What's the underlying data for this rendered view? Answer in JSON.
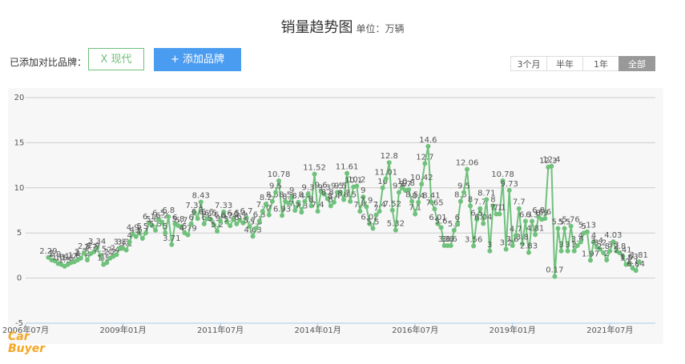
{
  "header": {
    "title": "销量趋势图",
    "unit": "单位：万辆",
    "added_label": "已添加对比品牌：",
    "brand_tag": "X 现代",
    "add_button": "+ 添加品牌",
    "ranges": [
      "3个月",
      "半年",
      "1年",
      "全部"
    ],
    "active_range": "全部",
    "logo": [
      "Car",
      "Buyer"
    ]
  },
  "chart_data": {
    "type": "line",
    "color": "#6fc17c",
    "grid": true,
    "xlim": [
      "2006-07",
      "2022-09"
    ],
    "xticks": [
      {
        "value": "2006-07",
        "label": "2006年07月"
      },
      {
        "value": "2009-01",
        "label": "2009年01月"
      },
      {
        "value": "2011-07",
        "label": "2011年07月"
      },
      {
        "value": "2014-01",
        "label": "2014年01月"
      },
      {
        "value": "2016-07",
        "label": "2016年07月"
      },
      {
        "value": "2019-01",
        "label": "2019年01月"
      },
      {
        "value": "2021-07",
        "label": "2021年07月"
      }
    ],
    "ylim": [
      -5,
      20
    ],
    "yticks": [
      -5,
      0,
      5,
      10,
      15,
      20
    ],
    "x": [
      "2007-02",
      "2007-03",
      "2007-04",
      "2007-05",
      "2007-06",
      "2007-07",
      "2007-08",
      "2007-09",
      "2007-10",
      "2007-11",
      "2007-12",
      "2008-01",
      "2008-02",
      "2008-03",
      "2008-04",
      "2008-05",
      "2008-06",
      "2008-07",
      "2008-08",
      "2008-09",
      "2008-10",
      "2008-11",
      "2008-12",
      "2009-01",
      "2009-02",
      "2009-03",
      "2009-04",
      "2009-05",
      "2009-06",
      "2009-07",
      "2009-08",
      "2009-09",
      "2009-10",
      "2009-11",
      "2009-12",
      "2010-01",
      "2010-02",
      "2010-03",
      "2010-04",
      "2010-05",
      "2010-06",
      "2010-07",
      "2010-08",
      "2010-09",
      "2010-10",
      "2010-11",
      "2010-12",
      "2011-01",
      "2011-02",
      "2011-03",
      "2011-04",
      "2011-05",
      "2011-06",
      "2011-07",
      "2011-08",
      "2011-09",
      "2011-10",
      "2011-11",
      "2011-12",
      "2012-01",
      "2012-02",
      "2012-03",
      "2012-04",
      "2012-05",
      "2012-06",
      "2012-07",
      "2012-08",
      "2012-09",
      "2012-10",
      "2012-11",
      "2012-12",
      "2013-01",
      "2013-02",
      "2013-03",
      "2013-04",
      "2013-05",
      "2013-06",
      "2013-07",
      "2013-08",
      "2013-09",
      "2013-10",
      "2013-11",
      "2013-12",
      "2014-01",
      "2014-02",
      "2014-03",
      "2014-04",
      "2014-05",
      "2014-06",
      "2014-07",
      "2014-08",
      "2014-09",
      "2014-10",
      "2014-11",
      "2014-12",
      "2015-01",
      "2015-02",
      "2015-03",
      "2015-04",
      "2015-05",
      "2015-06",
      "2015-07",
      "2015-08",
      "2015-09",
      "2015-10",
      "2015-11",
      "2015-12",
      "2016-01",
      "2016-02",
      "2016-03",
      "2016-04",
      "2016-05",
      "2016-06",
      "2016-07",
      "2016-08",
      "2016-09",
      "2016-10",
      "2016-11",
      "2016-12",
      "2017-01",
      "2017-02",
      "2017-03",
      "2017-04",
      "2017-05",
      "2017-06",
      "2017-07",
      "2017-08",
      "2017-09",
      "2017-10",
      "2017-11",
      "2017-12",
      "2018-01",
      "2018-02",
      "2018-03",
      "2018-04",
      "2018-05",
      "2018-06",
      "2018-07",
      "2018-08",
      "2018-09",
      "2018-10",
      "2018-11",
      "2018-12",
      "2019-01",
      "2019-02",
      "2019-03",
      "2019-04",
      "2019-05",
      "2019-06",
      "2019-07",
      "2019-08",
      "2019-09",
      "2019-10",
      "2019-11",
      "2019-12",
      "2020-01",
      "2020-02",
      "2020-03",
      "2020-04",
      "2020-05",
      "2020-06",
      "2020-07",
      "2020-08",
      "2020-09",
      "2020-10",
      "2020-11",
      "2020-12",
      "2021-01",
      "2021-02",
      "2021-03",
      "2021-04",
      "2021-05",
      "2021-06",
      "2021-07",
      "2021-08",
      "2021-09",
      "2021-10",
      "2021-11",
      "2021-12",
      "2022-01",
      "2022-02",
      "2022-03",
      "2022-04"
    ],
    "values": [
      2.29,
      2.0,
      1.9,
      1.6,
      1.5,
      1.3,
      1.5,
      1.7,
      1.8,
      2.0,
      2.2,
      2.8,
      2.0,
      2.7,
      2.9,
      3.34,
      2.5,
      1.5,
      1.7,
      2.2,
      2.4,
      2.6,
      3.3,
      3.3,
      3.1,
      4.0,
      4.9,
      4.6,
      5.0,
      4.4,
      5.0,
      6.1,
      5.8,
      5.3,
      6.5,
      6.2,
      5.0,
      6.8,
      3.71,
      6.0,
      5.8,
      5.7,
      5.0,
      4.79,
      6.0,
      7.31,
      6.6,
      8.43,
      6.0,
      6.6,
      6.5,
      5.9,
      5.2,
      6.3,
      7.33,
      6.2,
      5.8,
      6.5,
      6.0,
      6.4,
      6.1,
      6.7,
      5.7,
      4.63,
      5.5,
      6.3,
      7.4,
      8.2,
      7.0,
      8.5,
      9.5,
      10.78,
      6.93,
      8.5,
      8.3,
      9.0,
      7.5,
      8.4,
      7.3,
      8.5,
      9.3,
      8.0,
      11.52,
      7.4,
      9.6,
      9.3,
      8.8,
      8.0,
      8.4,
      9.5,
      9.5,
      8.7,
      11.61,
      8.5,
      10.1,
      10.2,
      7.4,
      9.0,
      7.9,
      6.02,
      5.5,
      7.0,
      7.4,
      10.0,
      11.01,
      12.8,
      7.52,
      5.32,
      9.5,
      10.0,
      9.7,
      9.8,
      8.5,
      7.1,
      8.4,
      10.42,
      12.7,
      14.6,
      8.41,
      7.65,
      6.01,
      5.6,
      3.6,
      3.6,
      3.6,
      5.3,
      6.0,
      8.5,
      9.5,
      12.06,
      8.0,
      3.56,
      6.5,
      7.7,
      6.04,
      8.71,
      3.0,
      8.0,
      7.1,
      7.1,
      10.78,
      3.2,
      9.73,
      3.6,
      4.7,
      7.7,
      3.8,
      6.3,
      2.83,
      6.3,
      4.81,
      6.8,
      6.5,
      6.6,
      12.3,
      12.4,
      0.17,
      5.5,
      3.0,
      5.5,
      3.0,
      5.76,
      3.0,
      3.6,
      4.0,
      5.0,
      5.13,
      1.97,
      4.0,
      3.4,
      3.2,
      2.8,
      2.0,
      3.0,
      4.03,
      3.0,
      2.8,
      2.41,
      1.5,
      1.63,
      1.1,
      0.84,
      1.81
    ]
  }
}
